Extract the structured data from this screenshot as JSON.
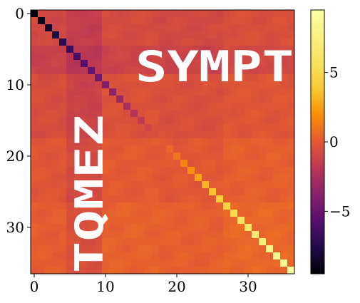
{
  "chart_data": {
    "type": "heatmap",
    "title": "",
    "xlabel": "",
    "ylabel": "",
    "matrix_size": 37,
    "x_ticks": [
      0,
      10,
      20,
      30
    ],
    "y_ticks": [
      0,
      10,
      20,
      30
    ],
    "diagonal": {
      "start_value": -9.3,
      "end_value": 9.3,
      "profile": "linear"
    },
    "off_diagonal_value_range": [
      -2.0,
      1.0
    ],
    "overlay_texts": [
      {
        "text": "SYMPT",
        "orientation": "horizontal",
        "color": "#ffffff"
      },
      {
        "text": "TQMEZ",
        "orientation": "vertical-rotated",
        "color": "#ffffff"
      }
    ],
    "colorbar": {
      "colormap": "inferno",
      "range": [
        -9.5,
        9.5
      ],
      "ticks": [
        -5,
        0,
        5
      ],
      "tick_labels": [
        "−5",
        "0",
        "5"
      ]
    }
  }
}
